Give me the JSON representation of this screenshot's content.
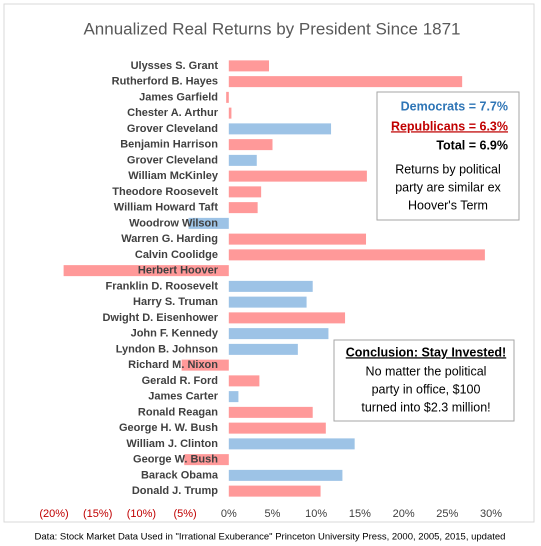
{
  "chart_data": {
    "type": "hbar",
    "title": "Annualized Real Returns by President Since 1871",
    "categories": [
      "Ulysses S. Grant",
      "Rutherford B. Hayes",
      "James Garfield",
      "Chester A. Arthur",
      "Grover Cleveland",
      "Benjamin Harrison",
      "Grover Cleveland",
      "William McKinley",
      "Theodore Roosevelt",
      "William Howard Taft",
      "Woodrow Wilson",
      "Warren G. Harding",
      "Calvin Coolidge",
      "Herbert Hoover",
      "Franklin D. Roosevelt",
      "Harry S. Truman",
      "Dwight D. Eisenhower",
      "John F. Kennedy",
      "Lyndon B. Johnson",
      "Richard M. Nixon",
      "Gerald R. Ford",
      "James Carter",
      "Ronald Reagan",
      "George H. W. Bush",
      "William J. Clinton",
      "George W. Bush",
      "Barack Obama",
      "Donald J. Trump"
    ],
    "values": [
      4.6,
      26.7,
      -0.3,
      0.3,
      11.7,
      5.0,
      3.2,
      15.8,
      3.7,
      3.3,
      -4.6,
      15.7,
      29.3,
      -18.9,
      9.6,
      8.9,
      13.3,
      11.4,
      7.9,
      -5.4,
      3.5,
      1.1,
      9.6,
      11.1,
      14.4,
      -5.1,
      13.0,
      10.5
    ],
    "colors": [
      "#ff9999",
      "#ff9999",
      "#ff9999",
      "#ff9999",
      "#9dc3e6",
      "#ff9999",
      "#9dc3e6",
      "#ff9999",
      "#ff9999",
      "#ff9999",
      "#9dc3e6",
      "#ff9999",
      "#ff9999",
      "#ff9999",
      "#9dc3e6",
      "#9dc3e6",
      "#ff9999",
      "#9dc3e6",
      "#9dc3e6",
      "#ff9999",
      "#ff9999",
      "#9dc3e6",
      "#ff9999",
      "#ff9999",
      "#9dc3e6",
      "#ff9999",
      "#9dc3e6",
      "#ff9999"
    ],
    "xlim": [
      -20,
      30
    ],
    "xticks": [
      {
        "value": -20,
        "label": "(20%)"
      },
      {
        "value": -15,
        "label": "(15%)"
      },
      {
        "value": -10,
        "label": "(10%)"
      },
      {
        "value": -5,
        "label": "(5%)"
      },
      {
        "value": 0,
        "label": "0%"
      },
      {
        "value": 5,
        "label": "5%"
      },
      {
        "value": 10,
        "label": "10%"
      },
      {
        "value": 15,
        "label": "15%"
      },
      {
        "value": 20,
        "label": "20%"
      },
      {
        "value": 25,
        "label": "25%"
      },
      {
        "value": 30,
        "label": "30%"
      }
    ],
    "annotations": [
      {
        "lines": [
          "Democrats = 7.7%",
          "Republicans = 6.3%",
          "Total = 6.9%",
          "Returns by political",
          "party are similar ex",
          "Hoover's Term"
        ]
      },
      {
        "lines": [
          "Conclusion: Stay Invested!",
          "No matter the political",
          "party in office, $100",
          "turned into $2.3 million!"
        ]
      }
    ],
    "source": "Data: Stock Market Data Used in \"Irrational Exuberance\" Princeton University Press, 2000, 2005, 2015, updated"
  }
}
